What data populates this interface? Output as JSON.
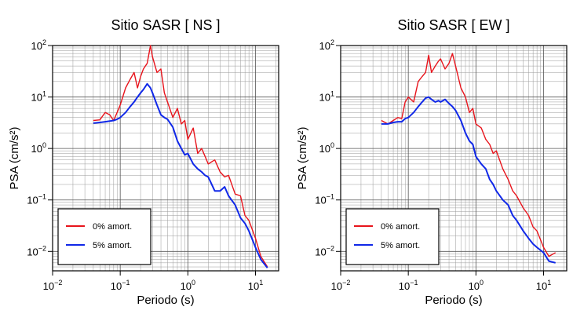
{
  "chart_data": [
    {
      "type": "line",
      "title": "Sitio SASR [ NS ]",
      "x_label": "Periodo (s)",
      "y_label": "PSA (cm/s²)",
      "x_scale": "log",
      "y_scale": "log",
      "grid": true,
      "minor_grid": true,
      "legend": "lower left",
      "xlim": [
        0.01,
        22
      ],
      "ylim": [
        0.0042,
        100
      ],
      "xticks": [
        {
          "value": 0.01,
          "label": "10",
          "exponent": "−2"
        },
        {
          "value": 0.1,
          "label": "10",
          "exponent": "−1"
        },
        {
          "value": 1,
          "label": "10",
          "exponent": "0"
        },
        {
          "value": 10,
          "label": "10",
          "exponent": "1"
        }
      ],
      "yticks": [
        {
          "value": 0.01,
          "label": "10",
          "exponent": "−2"
        },
        {
          "value": 0.1,
          "label": "10",
          "exponent": "−1"
        },
        {
          "value": 1,
          "label": "10",
          "exponent": "0"
        },
        {
          "value": 10,
          "label": "10",
          "exponent": "1"
        },
        {
          "value": 100,
          "label": "10",
          "exponent": "2"
        }
      ],
      "x": [
        0.04,
        0.05,
        0.06,
        0.07,
        0.08,
        0.09,
        0.1,
        0.12,
        0.14,
        0.16,
        0.18,
        0.2,
        0.22,
        0.25,
        0.28,
        0.3,
        0.35,
        0.4,
        0.45,
        0.5,
        0.6,
        0.7,
        0.8,
        0.9,
        1,
        1.2,
        1.4,
        1.6,
        1.8,
        2,
        2.5,
        3,
        3.5,
        4,
        5,
        6,
        7,
        8,
        10,
        12,
        15
      ],
      "series": [
        {
          "name": "0% amort.",
          "color": "#e8141c",
          "values": [
            3.5,
            3.6,
            5,
            4.5,
            3.5,
            5,
            7,
            15,
            22,
            30,
            15,
            25,
            35,
            45,
            100,
            60,
            30,
            35,
            12,
            8,
            4,
            6,
            3,
            3.5,
            1.5,
            2.5,
            0.8,
            1,
            0.7,
            0.5,
            0.6,
            0.35,
            0.28,
            0.3,
            0.13,
            0.12,
            0.05,
            0.04,
            0.018,
            0.008,
            0.005
          ]
        },
        {
          "name": "5% amort.",
          "color": "#1028e8",
          "values": [
            3.1,
            3.2,
            3.3,
            3.4,
            3.5,
            3.7,
            4,
            5,
            6.5,
            8,
            10,
            12,
            14,
            18,
            15,
            12,
            7,
            4.5,
            4,
            3.7,
            2.6,
            1.4,
            1.0,
            0.75,
            0.8,
            0.5,
            0.4,
            0.35,
            0.3,
            0.28,
            0.15,
            0.15,
            0.18,
            0.12,
            0.08,
            0.045,
            0.035,
            0.025,
            0.012,
            0.007,
            0.0048
          ]
        }
      ]
    },
    {
      "type": "line",
      "title": "Sitio SASR [ EW ]",
      "x_label": "Periodo (s)",
      "y_label": "PSA (cm/s²)",
      "x_scale": "log",
      "y_scale": "log",
      "grid": true,
      "minor_grid": true,
      "legend": "lower left",
      "xlim": [
        0.01,
        22
      ],
      "ylim": [
        0.0042,
        100
      ],
      "xticks": [
        {
          "value": 0.01,
          "label": "10",
          "exponent": "−2"
        },
        {
          "value": 0.1,
          "label": "10",
          "exponent": "−1"
        },
        {
          "value": 1,
          "label": "10",
          "exponent": "0"
        },
        {
          "value": 10,
          "label": "10",
          "exponent": "1"
        }
      ],
      "yticks": [
        {
          "value": 0.01,
          "label": "10",
          "exponent": "−2"
        },
        {
          "value": 0.1,
          "label": "10",
          "exponent": "−1"
        },
        {
          "value": 1,
          "label": "10",
          "exponent": "0"
        },
        {
          "value": 10,
          "label": "10",
          "exponent": "1"
        },
        {
          "value": 100,
          "label": "10",
          "exponent": "2"
        }
      ],
      "x": [
        0.04,
        0.05,
        0.06,
        0.07,
        0.08,
        0.09,
        0.1,
        0.12,
        0.14,
        0.16,
        0.18,
        0.2,
        0.22,
        0.25,
        0.28,
        0.3,
        0.35,
        0.4,
        0.45,
        0.5,
        0.6,
        0.7,
        0.8,
        0.9,
        1,
        1.2,
        1.4,
        1.6,
        1.8,
        2,
        2.5,
        3,
        3.5,
        4,
        5,
        6,
        7,
        8,
        10,
        12,
        15
      ],
      "series": [
        {
          "name": "0% amort.",
          "color": "#e8141c",
          "values": [
            3.5,
            3,
            3.5,
            4,
            3.8,
            8,
            10,
            8,
            20,
            25,
            30,
            65,
            30,
            40,
            50,
            55,
            35,
            45,
            70,
            40,
            15,
            10,
            5,
            6,
            3,
            2.5,
            1.5,
            1.2,
            0.8,
            0.9,
            0.4,
            0.25,
            0.15,
            0.12,
            0.07,
            0.05,
            0.03,
            0.025,
            0.012,
            0.008,
            0.0095
          ]
        },
        {
          "name": "5% amort.",
          "color": "#1028e8",
          "values": [
            3,
            3,
            3.2,
            3.3,
            3.3,
            3.8,
            4,
            5,
            6.5,
            8,
            9.5,
            10,
            9,
            8,
            8.5,
            8,
            9,
            7.5,
            6.5,
            5.5,
            3.5,
            2,
            1.4,
            1.2,
            0.7,
            0.5,
            0.4,
            0.25,
            0.2,
            0.15,
            0.1,
            0.08,
            0.05,
            0.04,
            0.025,
            0.018,
            0.014,
            0.012,
            0.0095,
            0.0065,
            0.006
          ]
        }
      ]
    }
  ]
}
